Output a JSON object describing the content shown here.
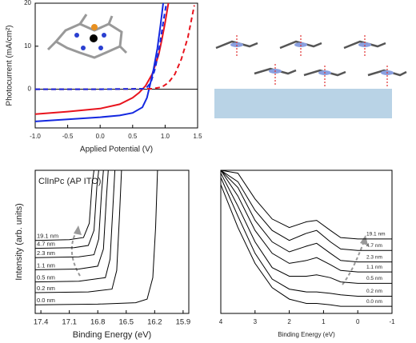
{
  "chart_data": [
    {
      "type": "line",
      "xlabel": "Applied Potential (V)",
      "ylabel": "Photocurrent (mA/cm²)",
      "xlim": [
        -1.0,
        1.5
      ],
      "xticks": [
        {
          "value": -1.0,
          "label": "-1.0"
        },
        {
          "value": -0.5,
          "label": "-0.5"
        },
        {
          "value": 0.0,
          "label": "0.0"
        },
        {
          "value": 0.5,
          "label": "0.5"
        },
        {
          "value": 1.0,
          "label": "1.0"
        },
        {
          "value": 1.5,
          "label": "1.5"
        }
      ],
      "ylim": [
        -9,
        20
      ],
      "yticks": [
        0,
        10,
        20
      ],
      "zero_line": true,
      "series": [
        {
          "color": "#e8141e",
          "linestyle": "solid",
          "x": [
            -1.0,
            -0.5,
            0.0,
            0.3,
            0.5,
            0.6,
            0.7,
            0.8,
            0.9,
            0.95,
            1.0,
            1.05
          ],
          "values": [
            -5.8,
            -5.2,
            -4.5,
            -3.5,
            -2.0,
            -0.8,
            0.8,
            3.5,
            8.0,
            11.5,
            15.5,
            20
          ]
        },
        {
          "color": "#1428e0",
          "linestyle": "solid",
          "x": [
            -1.0,
            -0.5,
            0.0,
            0.3,
            0.5,
            0.65,
            0.72,
            0.76,
            0.82,
            0.88,
            0.93,
            0.97
          ],
          "values": [
            -7.5,
            -7.0,
            -6.5,
            -6.1,
            -5.5,
            -4.2,
            -2.0,
            0.5,
            4.5,
            9.5,
            15.0,
            20
          ]
        },
        {
          "color": "#e8141e",
          "linestyle": "dashed",
          "x": [
            -1.0,
            0.0,
            0.8,
            0.95,
            1.05,
            1.15,
            1.25,
            1.35,
            1.45
          ],
          "values": [
            0,
            0,
            0.1,
            0.5,
            1.5,
            3.5,
            7.0,
            12.0,
            19.5
          ]
        },
        {
          "color": "#1428e0",
          "linestyle": "dashed",
          "x": [
            -1.0,
            0.0,
            0.7,
            0.78,
            0.85,
            0.92,
            0.97,
            1.02
          ],
          "values": [
            0,
            0,
            0.1,
            1.5,
            5.0,
            10.5,
            15.5,
            20
          ]
        }
      ]
    },
    {
      "type": "line",
      "xlabel": "Binding Energy (eV)",
      "ylabel": "Intensity (arb. units)",
      "annotation": "ClInPc (AP ITO)",
      "xlim": [
        17.46,
        15.84
      ],
      "xticks": [
        17.4,
        17.1,
        16.8,
        16.5,
        16.2,
        15.9
      ],
      "ylim": [
        0,
        100
      ],
      "label_side": "left",
      "series": [
        {
          "name": "0.0 nm",
          "color": "#000000",
          "x": [
            17.46,
            16.8,
            16.4,
            16.28,
            16.22,
            16.19,
            16.17
          ],
          "values": [
            6,
            6.5,
            7.5,
            10,
            25,
            60,
            100
          ]
        },
        {
          "name": "0.2 nm",
          "color": "#000000",
          "x": [
            17.46,
            16.9,
            16.65,
            16.6,
            16.57,
            16.55
          ],
          "values": [
            14.5,
            15,
            17,
            30,
            70,
            100
          ]
        },
        {
          "name": "0.5 nm",
          "color": "#000000",
          "x": [
            17.46,
            17.0,
            16.72,
            16.67,
            16.64,
            16.62
          ],
          "values": [
            22,
            22.5,
            25,
            38,
            75,
            100
          ]
        },
        {
          "name": "1.1 nm",
          "color": "#000000",
          "x": [
            17.46,
            17.0,
            16.8,
            16.74,
            16.71,
            16.69
          ],
          "values": [
            30.5,
            31,
            33,
            45,
            80,
            100
          ]
        },
        {
          "name": "2.3 nm",
          "color": "#000000",
          "x": [
            17.46,
            17.0,
            16.84,
            16.79,
            16.76,
            16.74
          ],
          "values": [
            39,
            39.5,
            41,
            52,
            85,
            100
          ]
        },
        {
          "name": "4.7 nm",
          "color": "#000000",
          "x": [
            17.46,
            17.05,
            16.9,
            16.84,
            16.81,
            16.79
          ],
          "values": [
            45.5,
            46,
            47.5,
            58,
            88,
            100
          ]
        },
        {
          "name": "19.1 nm",
          "color": "#000000",
          "x": [
            17.46,
            17.1,
            16.95,
            16.89,
            16.86,
            16.84
          ],
          "values": [
            51,
            51.5,
            53,
            63,
            90,
            100
          ]
        }
      ]
    },
    {
      "type": "line",
      "xlabel": "Binding Energy (eV)",
      "xlim": [
        4,
        -1
      ],
      "xticks": [
        4,
        3,
        2,
        1,
        0,
        -1
      ],
      "ylim": [
        0,
        100
      ],
      "label_side": "right",
      "x": [
        4,
        3.5,
        3,
        2.5,
        2,
        1.5,
        1.2,
        0.8,
        0.5,
        0,
        -0.5,
        -1
      ],
      "series": [
        {
          "name": "0.0 nm",
          "color": "#000000",
          "values": [
            90,
            60,
            35,
            18,
            10,
            7,
            7,
            6,
            5,
            5,
            5,
            5
          ]
        },
        {
          "name": "0.2 nm",
          "color": "#000000",
          "values": [
            95,
            68,
            42,
            24,
            17,
            15,
            15,
            14,
            13,
            12,
            12,
            12
          ]
        },
        {
          "name": "0.5 nm",
          "color": "#000000",
          "values": [
            98,
            75,
            50,
            32,
            26,
            26,
            27,
            25,
            22,
            21,
            21,
            21
          ]
        },
        {
          "name": "1.1 nm",
          "color": "#000000",
          "values": [
            100,
            82,
            58,
            42,
            35,
            37,
            39,
            34,
            30,
            29,
            29,
            29
          ]
        },
        {
          "name": "2.3 nm",
          "color": "#000000",
          "values": [
            100,
            88,
            65,
            50,
            43,
            47,
            49,
            42,
            37,
            36,
            36,
            36
          ]
        },
        {
          "name": "4.7 nm",
          "color": "#000000",
          "values": [
            100,
            92,
            72,
            58,
            51,
            56,
            58,
            50,
            45,
            44,
            44,
            44
          ]
        },
        {
          "name": "19.1 nm",
          "color": "#000000",
          "values": [
            100,
            98,
            80,
            66,
            60,
            64,
            65,
            58,
            53,
            52,
            52,
            52
          ]
        }
      ]
    }
  ]
}
